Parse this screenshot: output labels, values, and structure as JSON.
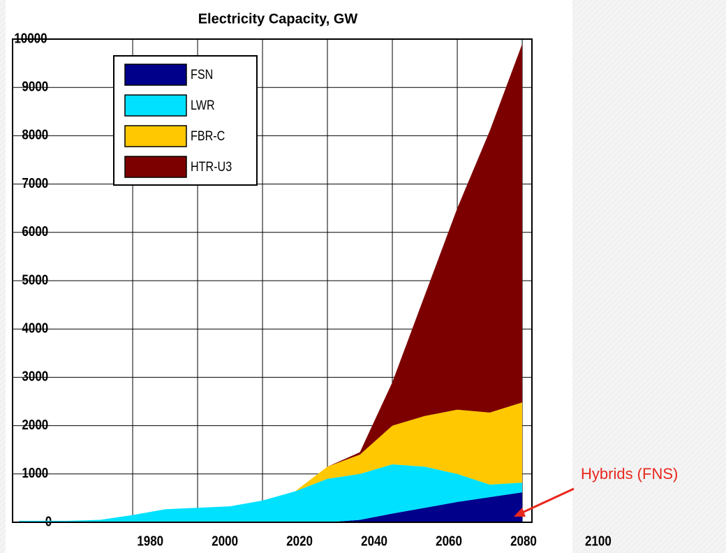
{
  "chart_data": {
    "type": "stacked_area",
    "title": "Electricity Capacity, GW",
    "x": [
      1945,
      1960,
      1970,
      1980,
      1990,
      2000,
      2010,
      2020,
      2030,
      2040,
      2050,
      2060,
      2070,
      2080,
      2090,
      2100
    ],
    "series": [
      {
        "name": "FSN",
        "color": "#00008b",
        "values": [
          0,
          0,
          0,
          0,
          0,
          0,
          0,
          0,
          0,
          0,
          50,
          180,
          300,
          420,
          520,
          620
        ]
      },
      {
        "name": "LWR",
        "color": "#00e1ff",
        "values": [
          30,
          30,
          50,
          150,
          270,
          300,
          330,
          450,
          640,
          900,
          950,
          1020,
          850,
          580,
          260,
          200
        ]
      },
      {
        "name": "FBR-C",
        "color": "#ffc800",
        "values": [
          0,
          0,
          0,
          0,
          0,
          0,
          0,
          0,
          0,
          250,
          400,
          800,
          1050,
          1330,
          1490,
          1660
        ]
      },
      {
        "name": "HTR-U3",
        "color": "#7d0000",
        "values": [
          0,
          0,
          0,
          0,
          0,
          0,
          0,
          0,
          0,
          0,
          50,
          900,
          2500,
          4170,
          5830,
          7420
        ]
      }
    ],
    "xlim": [
      1943,
      2103
    ],
    "xticks": [
      1980,
      2000,
      2020,
      2040,
      2060,
      2080,
      2100
    ],
    "ylim": [
      0,
      10000
    ],
    "yticks": [
      0,
      1000,
      2000,
      3000,
      4000,
      5000,
      6000,
      7000,
      8000,
      9000,
      10000
    ],
    "grid": true,
    "legend": "upper left",
    "annotation": "Hybrids (FNS)",
    "annotation_color": "#e8281e"
  }
}
